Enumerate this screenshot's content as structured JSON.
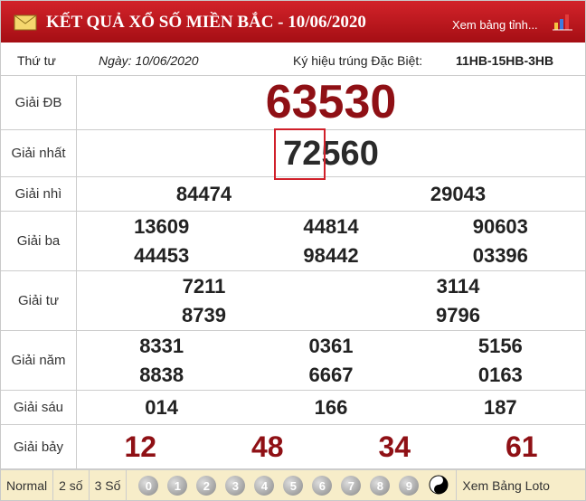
{
  "header": {
    "title": "KẾT QUẢ XỔ SỐ MIỀN BẮC - 10/06/2020",
    "link": "Xem bảng tỉnh..."
  },
  "info": {
    "weekday": "Thứ tư",
    "date": "Ngày: 10/06/2020",
    "code_label": "Ký hiệu trúng Đặc Biệt:",
    "code": "11HB-15HB-3HB"
  },
  "rows": [
    {
      "label": "Giải ĐB",
      "lines": [
        [
          "63530"
        ]
      ]
    },
    {
      "label": "Giải nhất",
      "lines": [
        [
          "72560"
        ]
      ]
    },
    {
      "label": "Giải nhì",
      "lines": [
        [
          "84474",
          "29043"
        ]
      ]
    },
    {
      "label": "Giải ba",
      "lines": [
        [
          "13609",
          "44814",
          "90603"
        ],
        [
          "44453",
          "98442",
          "03396"
        ]
      ]
    },
    {
      "label": "Giải tư",
      "lines": [
        [
          "7211",
          "3114"
        ],
        [
          "8739",
          "9796"
        ]
      ]
    },
    {
      "label": "Giải năm",
      "lines": [
        [
          "8331",
          "0361",
          "5156"
        ],
        [
          "8838",
          "6667",
          "0163"
        ]
      ]
    },
    {
      "label": "Giải sáu",
      "lines": [
        [
          "014",
          "166",
          "187"
        ]
      ]
    },
    {
      "label": "Giải bảy",
      "lines": [
        [
          "12",
          "48",
          "34",
          "61"
        ]
      ]
    }
  ],
  "footer": {
    "tabs": [
      "Normal",
      "2 số",
      "3 Số"
    ],
    "digits": [
      "0",
      "1",
      "2",
      "3",
      "4",
      "5",
      "6",
      "7",
      "8",
      "9"
    ],
    "link": "Xem Bảng Loto"
  }
}
